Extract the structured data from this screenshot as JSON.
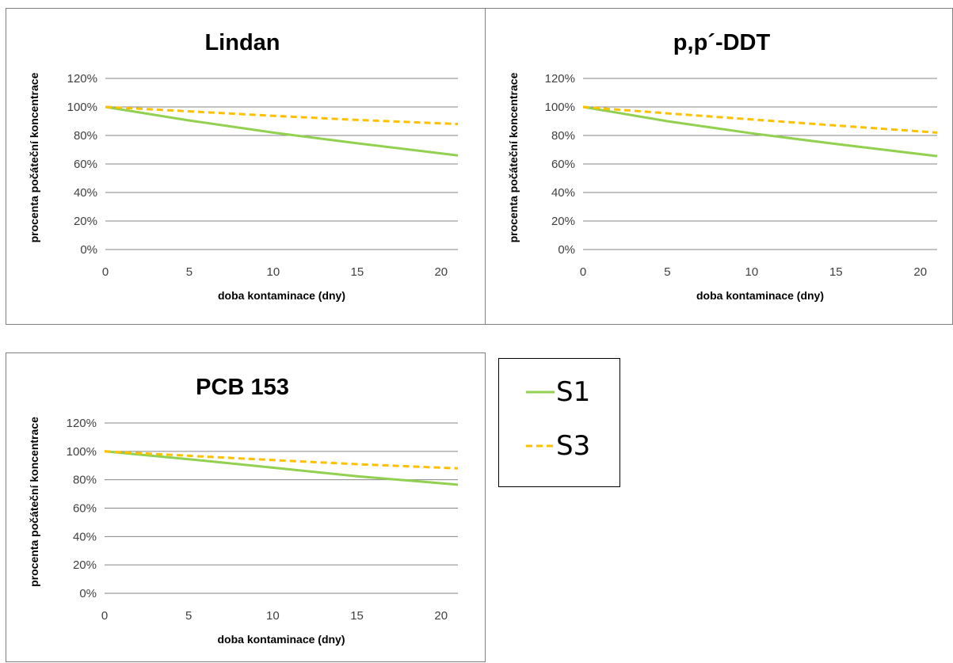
{
  "chart_data": [
    {
      "type": "line",
      "title": "Lindan",
      "xlabel": "doba kontaminace (dny)",
      "ylabel": "procenta počáteční koncentrace",
      "xlim": [
        0,
        21
      ],
      "ylim": [
        0,
        120
      ],
      "xticks": [
        "0",
        "5",
        "10",
        "15",
        "20"
      ],
      "yticks": [
        "0%",
        "20%",
        "40%",
        "60%",
        "80%",
        "100%",
        "120%"
      ],
      "grid": true,
      "legend": "none",
      "series": [
        {
          "name": "S1",
          "color": "#92d050",
          "dash": "solid",
          "x": [
            0,
            5,
            10,
            15,
            21
          ],
          "y": [
            100,
            90.5,
            82,
            74.5,
            66
          ]
        },
        {
          "name": "S3",
          "color": "#ffc000",
          "dash": "dashed",
          "x": [
            0,
            5,
            10,
            15,
            21
          ],
          "y": [
            100,
            96.9,
            93.8,
            90.9,
            88
          ]
        }
      ]
    },
    {
      "type": "line",
      "title": "p,p´-DDT",
      "xlabel": "doba kontaminace (dny)",
      "ylabel": "procenta počáteční koncentrace",
      "xlim": [
        0,
        21
      ],
      "ylim": [
        0,
        120
      ],
      "xticks": [
        "0",
        "5",
        "10",
        "15",
        "20"
      ],
      "yticks": [
        "0%",
        "20%",
        "40%",
        "60%",
        "80%",
        "100%",
        "120%"
      ],
      "grid": true,
      "legend": "none",
      "series": [
        {
          "name": "S1",
          "color": "#92d050",
          "dash": "solid",
          "x": [
            0,
            5,
            10,
            15,
            21
          ],
          "y": [
            100,
            90,
            81.5,
            74,
            65.5
          ]
        },
        {
          "name": "S3",
          "color": "#ffc000",
          "dash": "dashed",
          "x": [
            0,
            5,
            10,
            15,
            21
          ],
          "y": [
            100,
            95.5,
            91.2,
            87,
            82
          ]
        }
      ]
    },
    {
      "type": "line",
      "title": "PCB 153",
      "xlabel": "doba kontaminace (dny)",
      "ylabel": "procenta počáteční koncentrace",
      "xlim": [
        0,
        21
      ],
      "ylim": [
        0,
        120
      ],
      "xticks": [
        "0",
        "5",
        "10",
        "15",
        "20"
      ],
      "yticks": [
        "0%",
        "20%",
        "40%",
        "60%",
        "80%",
        "100%",
        "120%"
      ],
      "grid": true,
      "legend": "none",
      "series": [
        {
          "name": "S1",
          "color": "#92d050",
          "dash": "solid",
          "x": [
            0,
            5,
            10,
            15,
            21
          ],
          "y": [
            100,
            94.5,
            88.5,
            82.5,
            76.5
          ]
        },
        {
          "name": "S3",
          "color": "#ffc000",
          "dash": "dashed",
          "x": [
            0,
            5,
            10,
            15,
            21
          ],
          "y": [
            100,
            96.9,
            93.9,
            91,
            88
          ]
        }
      ]
    }
  ],
  "legend": {
    "items": [
      {
        "label": "S1",
        "color": "#92d050",
        "dash": "solid"
      },
      {
        "label": "S3",
        "color": "#ffc000",
        "dash": "dashed"
      }
    ]
  }
}
